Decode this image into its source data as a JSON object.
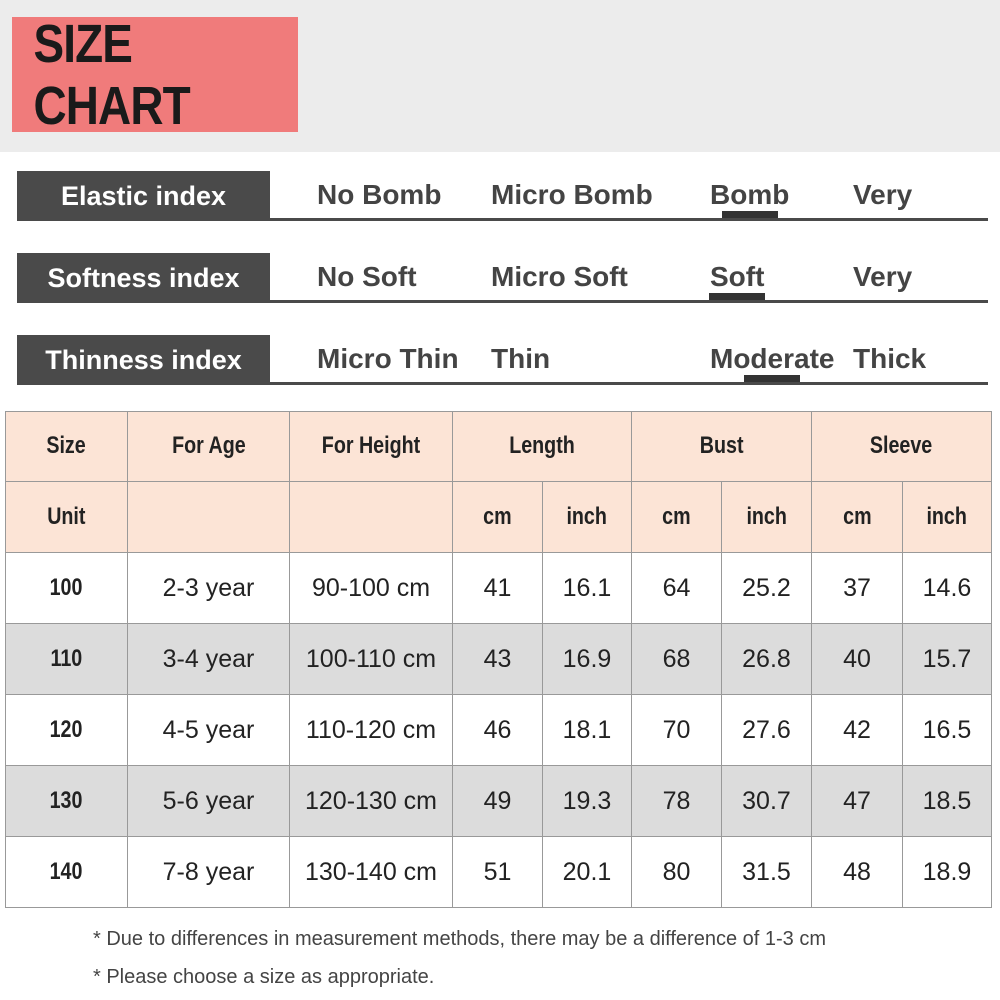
{
  "header": {
    "title": "SIZE CHART"
  },
  "indices": [
    {
      "label": "Elastic index",
      "options": [
        "No Bomb",
        "Micro Bomb",
        "Bomb",
        "Very"
      ],
      "selected": 2
    },
    {
      "label": "Softness index",
      "options": [
        "No Soft",
        "Micro Soft",
        "Soft",
        "Very"
      ],
      "selected": 2
    },
    {
      "label": "Thinness index",
      "options": [
        "Micro Thin",
        "Thin",
        "Moderate",
        "Thick"
      ],
      "selected": 2
    }
  ],
  "table": {
    "size": "Size",
    "age": "For Age",
    "height": "For Height",
    "unit": "Unit",
    "groups": [
      {
        "name": "Length",
        "units": [
          "cm",
          "inch"
        ]
      },
      {
        "name": "Bust",
        "units": [
          "cm",
          "inch"
        ]
      },
      {
        "name": "Sleeve",
        "units": [
          "cm",
          "inch"
        ]
      }
    ],
    "rows": [
      [
        "100",
        "2-3 year",
        "90-100 cm",
        "41",
        "16.1",
        "64",
        "25.2",
        "37",
        "14.6"
      ],
      [
        "110",
        "3-4 year",
        "100-110 cm",
        "43",
        "16.9",
        "68",
        "26.8",
        "40",
        "15.7"
      ],
      [
        "120",
        "4-5 year",
        "110-120 cm",
        "46",
        "18.1",
        "70",
        "27.6",
        "42",
        "16.5"
      ],
      [
        "130",
        "5-6 year",
        "120-130 cm",
        "49",
        "19.3",
        "78",
        "30.7",
        "47",
        "18.5"
      ],
      [
        "140",
        "7-8 year",
        "130-140 cm",
        "51",
        "20.1",
        "80",
        "31.5",
        "48",
        "18.9"
      ]
    ]
  },
  "notes": [
    "* Due to differences in measurement methods, there may be a difference of 1-3 cm",
    "* Please choose a size as appropriate."
  ]
}
